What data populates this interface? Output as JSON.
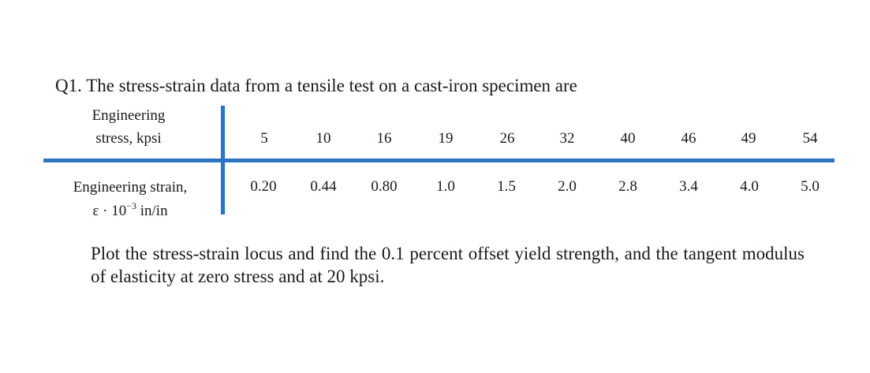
{
  "question": {
    "text": "Q1. The stress-strain data from a tensile test on a cast-iron specimen are"
  },
  "table": {
    "stress_label_line1": "Engineering",
    "stress_label_line2": "stress, kpsi",
    "strain_label_line1": "Engineering strain,",
    "strain_label_symbol": "ε · 10",
    "strain_label_exponent": "−3",
    "strain_label_unit": " in/in",
    "stress_values": [
      "5",
      "10",
      "16",
      "19",
      "26",
      "32",
      "40",
      "46",
      "49",
      "54"
    ],
    "strain_values": [
      "0.20",
      "0.44",
      "0.80",
      "1.0",
      "1.5",
      "2.0",
      "2.8",
      "3.4",
      "4.0",
      "5.0"
    ]
  },
  "prompt": {
    "text": "Plot the stress-strain locus and find the 0.1 percent offset yield strength, and the tangent modulus of elasticity at zero stress and at 20 kpsi."
  },
  "colors": {
    "rule": "#2e73c4",
    "text": "#1a1a1a"
  }
}
